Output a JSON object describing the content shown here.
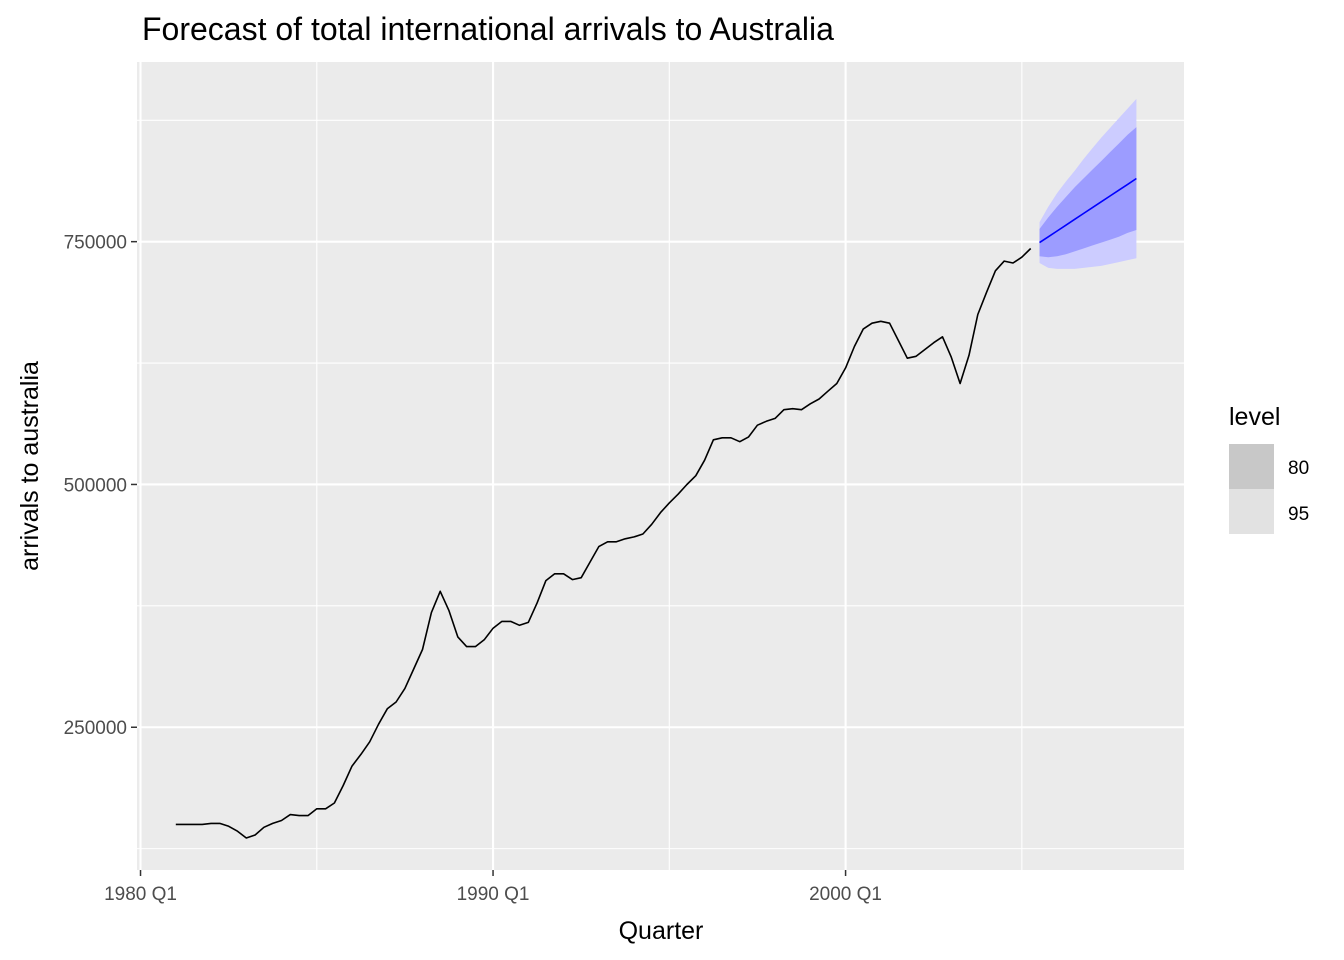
{
  "chart_data": {
    "type": "line",
    "title": "Forecast of total international arrivals to Australia",
    "xlabel": "Quarter",
    "ylabel": "arrivals to australia",
    "x_unit": "quarter",
    "x_tick_labels": [
      "1980 Q1",
      "1990 Q1",
      "2000 Q1"
    ],
    "x_tick_values": [
      1980.0,
      1990.0,
      2000.0
    ],
    "y_tick_values": [
      250000,
      500000,
      750000
    ],
    "y_tick_labels": [
      "250000",
      "500000",
      "750000"
    ],
    "xlim": [
      1979.9,
      2009.6
    ],
    "ylim": [
      103000,
      935000
    ],
    "grid": true,
    "colors": {
      "panel_background": "#ebebeb",
      "grid": "#ffffff",
      "history_line": "#000000",
      "forecast_line": "#0000ff",
      "interval_80": "#9c9cff",
      "interval_95": "#ccccff",
      "legend_80_key": "#c8c8c8",
      "legend_95_key": "#e2e2e2"
    },
    "legend": {
      "title": "level",
      "position": "right",
      "entries": [
        "80",
        "95"
      ]
    },
    "series": [
      {
        "kind": "history",
        "start": "1981 Q1",
        "values": [
          150000,
          150000,
          150000,
          150000,
          151000,
          151000,
          148000,
          143000,
          136000,
          139000,
          147000,
          151000,
          154000,
          160000,
          159000,
          159000,
          166000,
          166000,
          172000,
          190000,
          210000,
          222000,
          235000,
          253000,
          269000,
          276000,
          290000,
          310000,
          330000,
          368000,
          390000,
          370000,
          343000,
          333000,
          333000,
          340000,
          352000,
          359000,
          359000,
          355000,
          358000,
          378000,
          401000,
          408000,
          408000,
          402000,
          404000,
          420000,
          436000,
          441000,
          441000,
          444000,
          446000,
          449000,
          459000,
          471000,
          481000,
          490000,
          500000,
          509000,
          525000,
          546000,
          548000,
          548000,
          544000,
          549000,
          561000,
          565000,
          568000,
          577000,
          578000,
          577000,
          583000,
          588000,
          596000,
          604000,
          620000,
          642000,
          660000,
          666000,
          668000,
          666000,
          648000,
          630000,
          632000,
          639000,
          646000,
          652000,
          631000,
          604000,
          633000,
          675000,
          698000,
          720000,
          730000,
          728000,
          734000,
          743000
        ]
      },
      {
        "kind": "forecast",
        "start": "2005 Q3",
        "mean": [
          749000,
          755000,
          761000,
          767000,
          773000,
          779000,
          785000,
          791000,
          797000,
          803000,
          809000,
          815000
        ],
        "lo80": [
          735000,
          734000,
          735000,
          737000,
          740000,
          743000,
          746000,
          749000,
          752000,
          755000,
          759000,
          762000
        ],
        "hi80": [
          763000,
          775000,
          786000,
          796000,
          806000,
          815000,
          824000,
          833000,
          842000,
          851000,
          860000,
          868000
        ],
        "lo95": [
          728000,
          723000,
          722000,
          722000,
          722000,
          723000,
          724000,
          725000,
          727000,
          729000,
          731000,
          733000
        ],
        "hi95": [
          770000,
          786000,
          800000,
          812000,
          823000,
          835000,
          846000,
          857000,
          867000,
          877000,
          887000,
          897000
        ]
      }
    ]
  }
}
